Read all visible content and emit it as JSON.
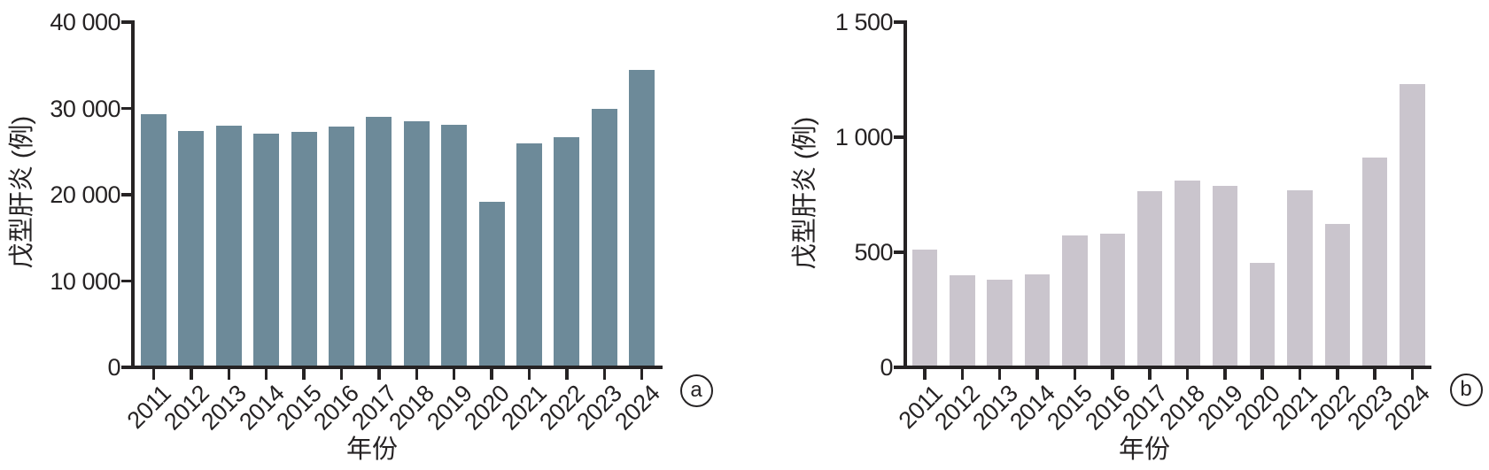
{
  "chart_data": [
    {
      "type": "bar",
      "panel_label": "a",
      "title": "",
      "xlabel": "年份",
      "ylabel": "戊型肝炎 (例)",
      "categories": [
        "2011",
        "2012",
        "2013",
        "2014",
        "2015",
        "2016",
        "2017",
        "2018",
        "2019",
        "2020",
        "2021",
        "2022",
        "2023",
        "2024"
      ],
      "values": [
        29300,
        27400,
        28000,
        27100,
        27300,
        27900,
        29000,
        28500,
        28100,
        19200,
        26000,
        26700,
        29900,
        34500
      ],
      "ylim": [
        0,
        40000
      ],
      "ytick_values": [
        0,
        10000,
        20000,
        30000,
        40000
      ],
      "ytick_labels": [
        "0",
        "10 000",
        "20 000",
        "30 000",
        "40 000"
      ],
      "bar_color": "#6d8a99",
      "axis_color": "#262324",
      "grid": false,
      "legend": "none"
    },
    {
      "type": "bar",
      "panel_label": "b",
      "title": "",
      "xlabel": "年份",
      "ylabel": "戊型肝炎 (例)",
      "categories": [
        "2011",
        "2012",
        "2013",
        "2014",
        "2015",
        "2016",
        "2017",
        "2018",
        "2019",
        "2020",
        "2021",
        "2022",
        "2023",
        "2024"
      ],
      "values": [
        510,
        400,
        380,
        405,
        575,
        580,
        765,
        810,
        790,
        455,
        770,
        625,
        910,
        1230
      ],
      "ylim": [
        0,
        1500
      ],
      "ytick_values": [
        0,
        500,
        1000,
        1500
      ],
      "ytick_labels": [
        "0",
        "500",
        "1 000",
        "1 500"
      ],
      "bar_color": "#cac5cd",
      "axis_color": "#262324",
      "grid": false,
      "legend": "none"
    }
  ]
}
